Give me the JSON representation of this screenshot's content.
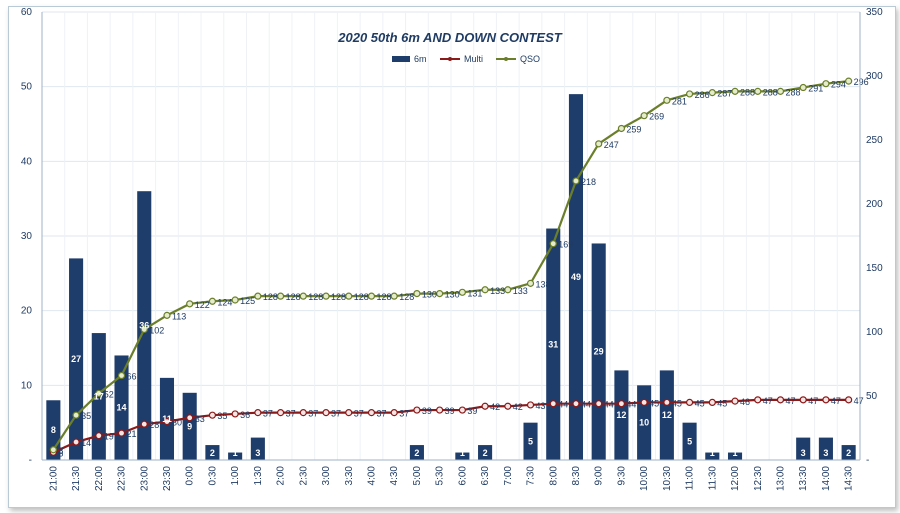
{
  "chart_data": {
    "type": "bar+line",
    "title": "2020 50th 6m AND DOWN CONTEST",
    "legend": [
      "6m",
      "Multi",
      "QSO"
    ],
    "legend_position": "top-center",
    "categories": [
      "21:00",
      "21:30",
      "22:00",
      "22:30",
      "23:00",
      "23:30",
      "0:00",
      "0:30",
      "1:00",
      "1:30",
      "2:00",
      "2:30",
      "3:00",
      "3:30",
      "4:00",
      "4:30",
      "5:00",
      "5:30",
      "6:00",
      "6:30",
      "7:00",
      "7:30",
      "8:00",
      "8:30",
      "9:00",
      "9:30",
      "10:00",
      "10:30",
      "11:00",
      "11:30",
      "12:00",
      "12:30",
      "13:00",
      "13:30",
      "14:00",
      "14:30"
    ],
    "series": [
      {
        "name": "6m",
        "type": "bar",
        "axis": "left",
        "color": "#1f3d6b",
        "values": [
          8,
          27,
          17,
          14,
          36,
          11,
          9,
          2,
          1,
          3,
          0,
          0,
          0,
          0,
          0,
          0,
          2,
          0,
          1,
          2,
          0,
          5,
          31,
          49,
          29,
          12,
          10,
          12,
          5,
          1,
          1,
          0,
          0,
          3,
          3,
          2
        ]
      },
      {
        "name": "Multi",
        "type": "line",
        "axis": "right",
        "color": "#8b1a1a",
        "values": [
          6,
          14,
          19,
          21,
          28,
          30,
          33,
          35,
          36,
          37,
          37,
          37,
          37,
          37,
          37,
          37,
          39,
          39,
          39,
          42,
          42,
          43,
          44,
          44,
          44,
          44,
          45,
          45,
          45,
          45,
          46,
          47,
          47,
          47,
          47,
          47
        ]
      },
      {
        "name": "QSO",
        "type": "line",
        "axis": "right",
        "color": "#6b7f2a",
        "values": [
          8,
          35,
          52,
          66,
          102,
          113,
          122,
          124,
          125,
          128,
          128,
          128,
          128,
          128,
          128,
          128,
          130,
          130,
          131,
          133,
          133,
          138,
          169,
          218,
          247,
          259,
          269,
          281,
          286,
          287,
          288,
          288,
          288,
          291,
          294,
          296
        ]
      }
    ],
    "y_left": {
      "min": 0,
      "max": 60,
      "ticks": [
        "-",
        "10",
        "20",
        "30",
        "40",
        "50",
        "60"
      ]
    },
    "y_right": {
      "min": 0,
      "max": 350,
      "ticks": [
        "-",
        "50",
        "100",
        "150",
        "200",
        "250",
        "300",
        "350"
      ]
    },
    "grid": true
  }
}
